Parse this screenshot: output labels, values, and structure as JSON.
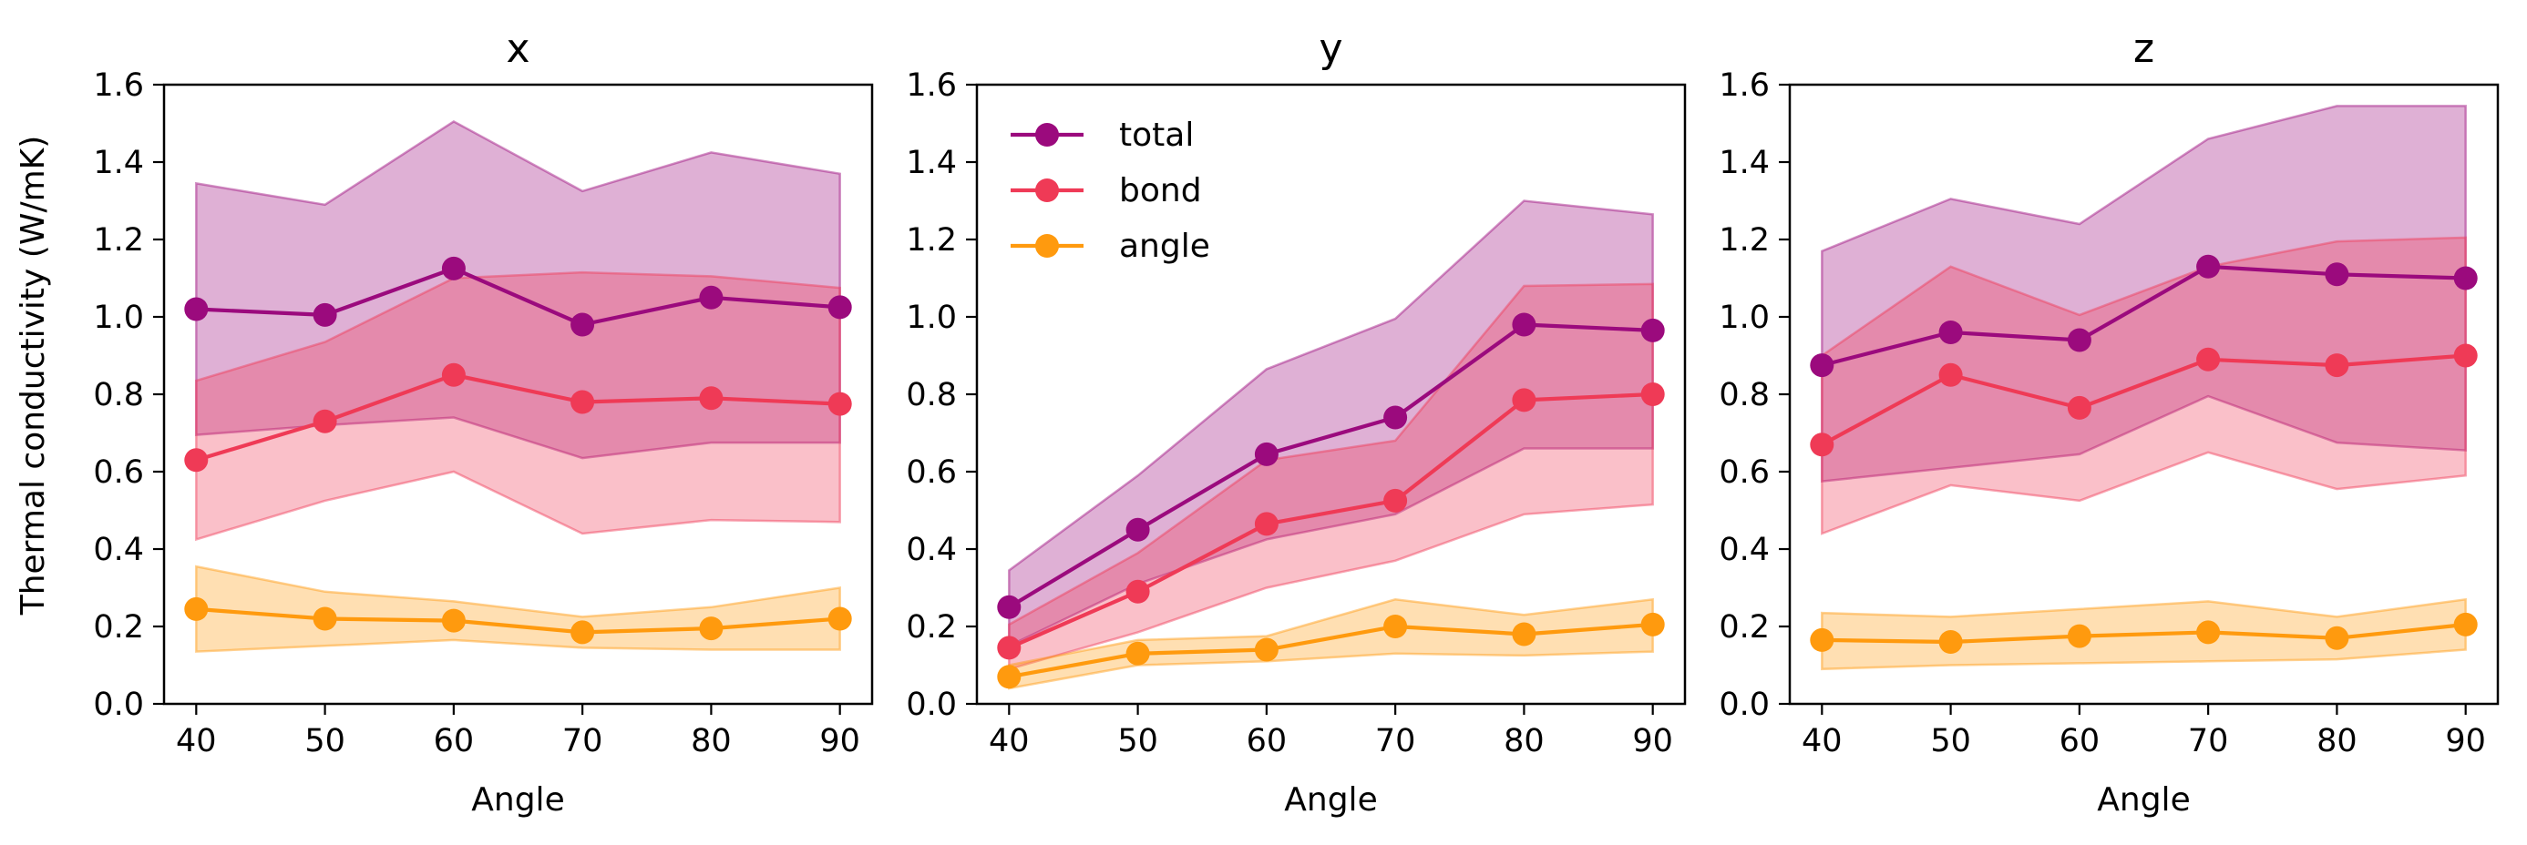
{
  "figure": {
    "ylabel": "Thermal conductivity (W/mK)"
  },
  "legend": {
    "placement": "upper-left of panel y",
    "entries": [
      "total",
      "bond",
      "angle"
    ]
  },
  "colors": {
    "total": "#9b0a7d",
    "bond": "#ef3a56",
    "angle": "#ff9a0e"
  },
  "chart_data": [
    {
      "type": "line",
      "title": "x",
      "xlabel": "Angle",
      "ylabel": "Thermal conductivity (W/mK)",
      "x": [
        40,
        50,
        60,
        70,
        80,
        90
      ],
      "xlim": [
        37.5,
        92.5
      ],
      "ylim": [
        0.0,
        1.6
      ],
      "xticks": [
        40,
        50,
        60,
        70,
        80,
        90
      ],
      "yticks": [
        "0.0",
        "0.2",
        "0.4",
        "0.6",
        "0.8",
        "1.0",
        "1.2",
        "1.4",
        "1.6"
      ],
      "grid": false,
      "series": [
        {
          "name": "total",
          "values": [
            1.02,
            1.005,
            1.125,
            0.98,
            1.05,
            1.025
          ],
          "lower": [
            0.695,
            0.72,
            0.74,
            0.635,
            0.675,
            0.675
          ],
          "upper": [
            1.345,
            1.29,
            1.505,
            1.325,
            1.425,
            1.37
          ]
        },
        {
          "name": "bond",
          "values": [
            0.63,
            0.73,
            0.85,
            0.78,
            0.79,
            0.775
          ],
          "lower": [
            0.425,
            0.525,
            0.6,
            0.44,
            0.475,
            0.47
          ],
          "upper": [
            0.835,
            0.935,
            1.1,
            1.115,
            1.105,
            1.075
          ]
        },
        {
          "name": "angle",
          "values": [
            0.245,
            0.22,
            0.215,
            0.185,
            0.195,
            0.22
          ],
          "lower": [
            0.135,
            0.15,
            0.165,
            0.145,
            0.14,
            0.14
          ],
          "upper": [
            0.355,
            0.29,
            0.265,
            0.225,
            0.25,
            0.3
          ]
        }
      ]
    },
    {
      "type": "line",
      "title": "y",
      "xlabel": "Angle",
      "ylabel": "",
      "x": [
        40,
        50,
        60,
        70,
        80,
        90
      ],
      "xlim": [
        37.5,
        92.5
      ],
      "ylim": [
        0.0,
        1.6
      ],
      "xticks": [
        40,
        50,
        60,
        70,
        80,
        90
      ],
      "yticks": [
        "0.0",
        "0.2",
        "0.4",
        "0.6",
        "0.8",
        "1.0",
        "1.2",
        "1.4",
        "1.6"
      ],
      "grid": false,
      "series": [
        {
          "name": "total",
          "values": [
            0.25,
            0.45,
            0.645,
            0.74,
            0.98,
            0.965
          ],
          "lower": [
            0.15,
            0.31,
            0.425,
            0.49,
            0.66,
            0.66
          ],
          "upper": [
            0.345,
            0.59,
            0.865,
            0.995,
            1.3,
            1.265
          ]
        },
        {
          "name": "bond",
          "values": [
            0.145,
            0.29,
            0.465,
            0.525,
            0.785,
            0.8
          ],
          "lower": [
            0.09,
            0.185,
            0.3,
            0.37,
            0.49,
            0.515
          ],
          "upper": [
            0.205,
            0.39,
            0.63,
            0.68,
            1.08,
            1.085
          ]
        },
        {
          "name": "angle",
          "values": [
            0.07,
            0.13,
            0.14,
            0.2,
            0.18,
            0.205
          ],
          "lower": [
            0.04,
            0.1,
            0.11,
            0.13,
            0.125,
            0.135
          ],
          "upper": [
            0.1,
            0.165,
            0.175,
            0.27,
            0.23,
            0.27
          ]
        }
      ]
    },
    {
      "type": "line",
      "title": "z",
      "xlabel": "Angle",
      "ylabel": "",
      "x": [
        40,
        50,
        60,
        70,
        80,
        90
      ],
      "xlim": [
        37.5,
        92.5
      ],
      "ylim": [
        0.0,
        1.6
      ],
      "xticks": [
        40,
        50,
        60,
        70,
        80,
        90
      ],
      "yticks": [
        "0.0",
        "0.2",
        "0.4",
        "0.6",
        "0.8",
        "1.0",
        "1.2",
        "1.4",
        "1.6"
      ],
      "grid": false,
      "series": [
        {
          "name": "total",
          "values": [
            0.875,
            0.96,
            0.94,
            1.13,
            1.11,
            1.1
          ],
          "lower": [
            0.575,
            0.61,
            0.645,
            0.795,
            0.675,
            0.655
          ],
          "upper": [
            1.17,
            1.305,
            1.24,
            1.46,
            1.545,
            1.545
          ]
        },
        {
          "name": "bond",
          "values": [
            0.67,
            0.85,
            0.765,
            0.89,
            0.875,
            0.9
          ],
          "lower": [
            0.44,
            0.565,
            0.525,
            0.65,
            0.555,
            0.59
          ],
          "upper": [
            0.9,
            1.13,
            1.005,
            1.13,
            1.195,
            1.205
          ]
        },
        {
          "name": "angle",
          "values": [
            0.165,
            0.16,
            0.175,
            0.185,
            0.17,
            0.205
          ],
          "lower": [
            0.09,
            0.1,
            0.105,
            0.11,
            0.115,
            0.14
          ],
          "upper": [
            0.235,
            0.225,
            0.245,
            0.265,
            0.225,
            0.27
          ]
        }
      ]
    }
  ]
}
